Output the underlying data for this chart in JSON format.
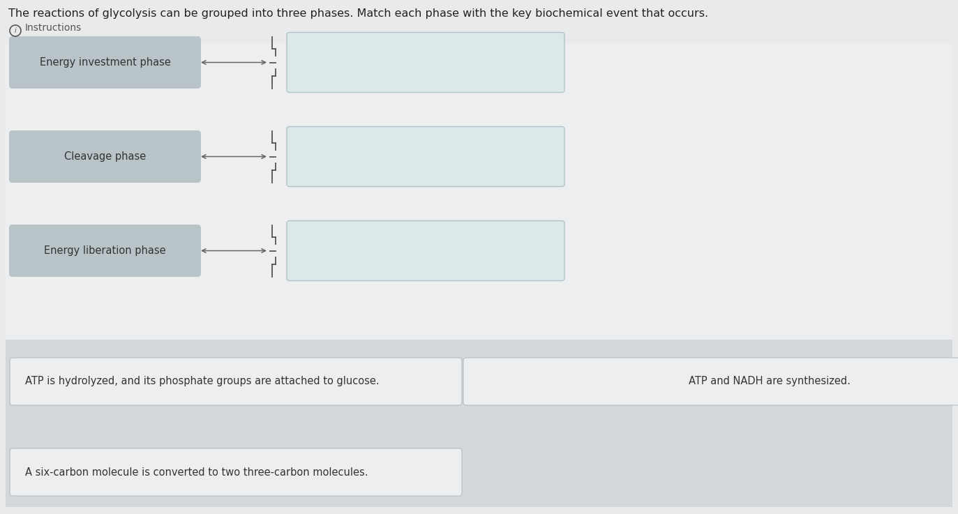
{
  "title": "The reactions of glycolysis can be grouped into three phases. Match each phase with the key biochemical event that occurs.",
  "instructions_text": "ⓘ Instructions",
  "bg_color": "#e8eaec",
  "upper_bg_color": "#eceef0",
  "left_box_color": "#b8c4c8",
  "right_box_color": "#dce8ea",
  "right_box_edge": "#b0c4c8",
  "bottom_bg_color": "#d4d8dc",
  "bottom_box_color": "#eceef0",
  "bottom_box_edge": "#b8bcbe",
  "arrow_color": "#666666",
  "brace_color": "#555555",
  "title_color": "#222222",
  "label_color": "#333333",
  "instructions_color": "#555555",
  "left_labels": [
    "Energy investment phase",
    "Cleavage phase",
    "Energy liberation phase"
  ],
  "bottom_labels": [
    "ATP is hydrolyzed, and its phosphate groups are attached to glucose.",
    "ATP and NADH are synthesized.",
    "A six-carbon molecule is converted to two three-carbon molecules."
  ],
  "title_fontsize": 11.5,
  "label_fontsize": 10.5,
  "instructions_fontsize": 10,
  "figw": 13.73,
  "figh": 7.37,
  "dpi": 100
}
